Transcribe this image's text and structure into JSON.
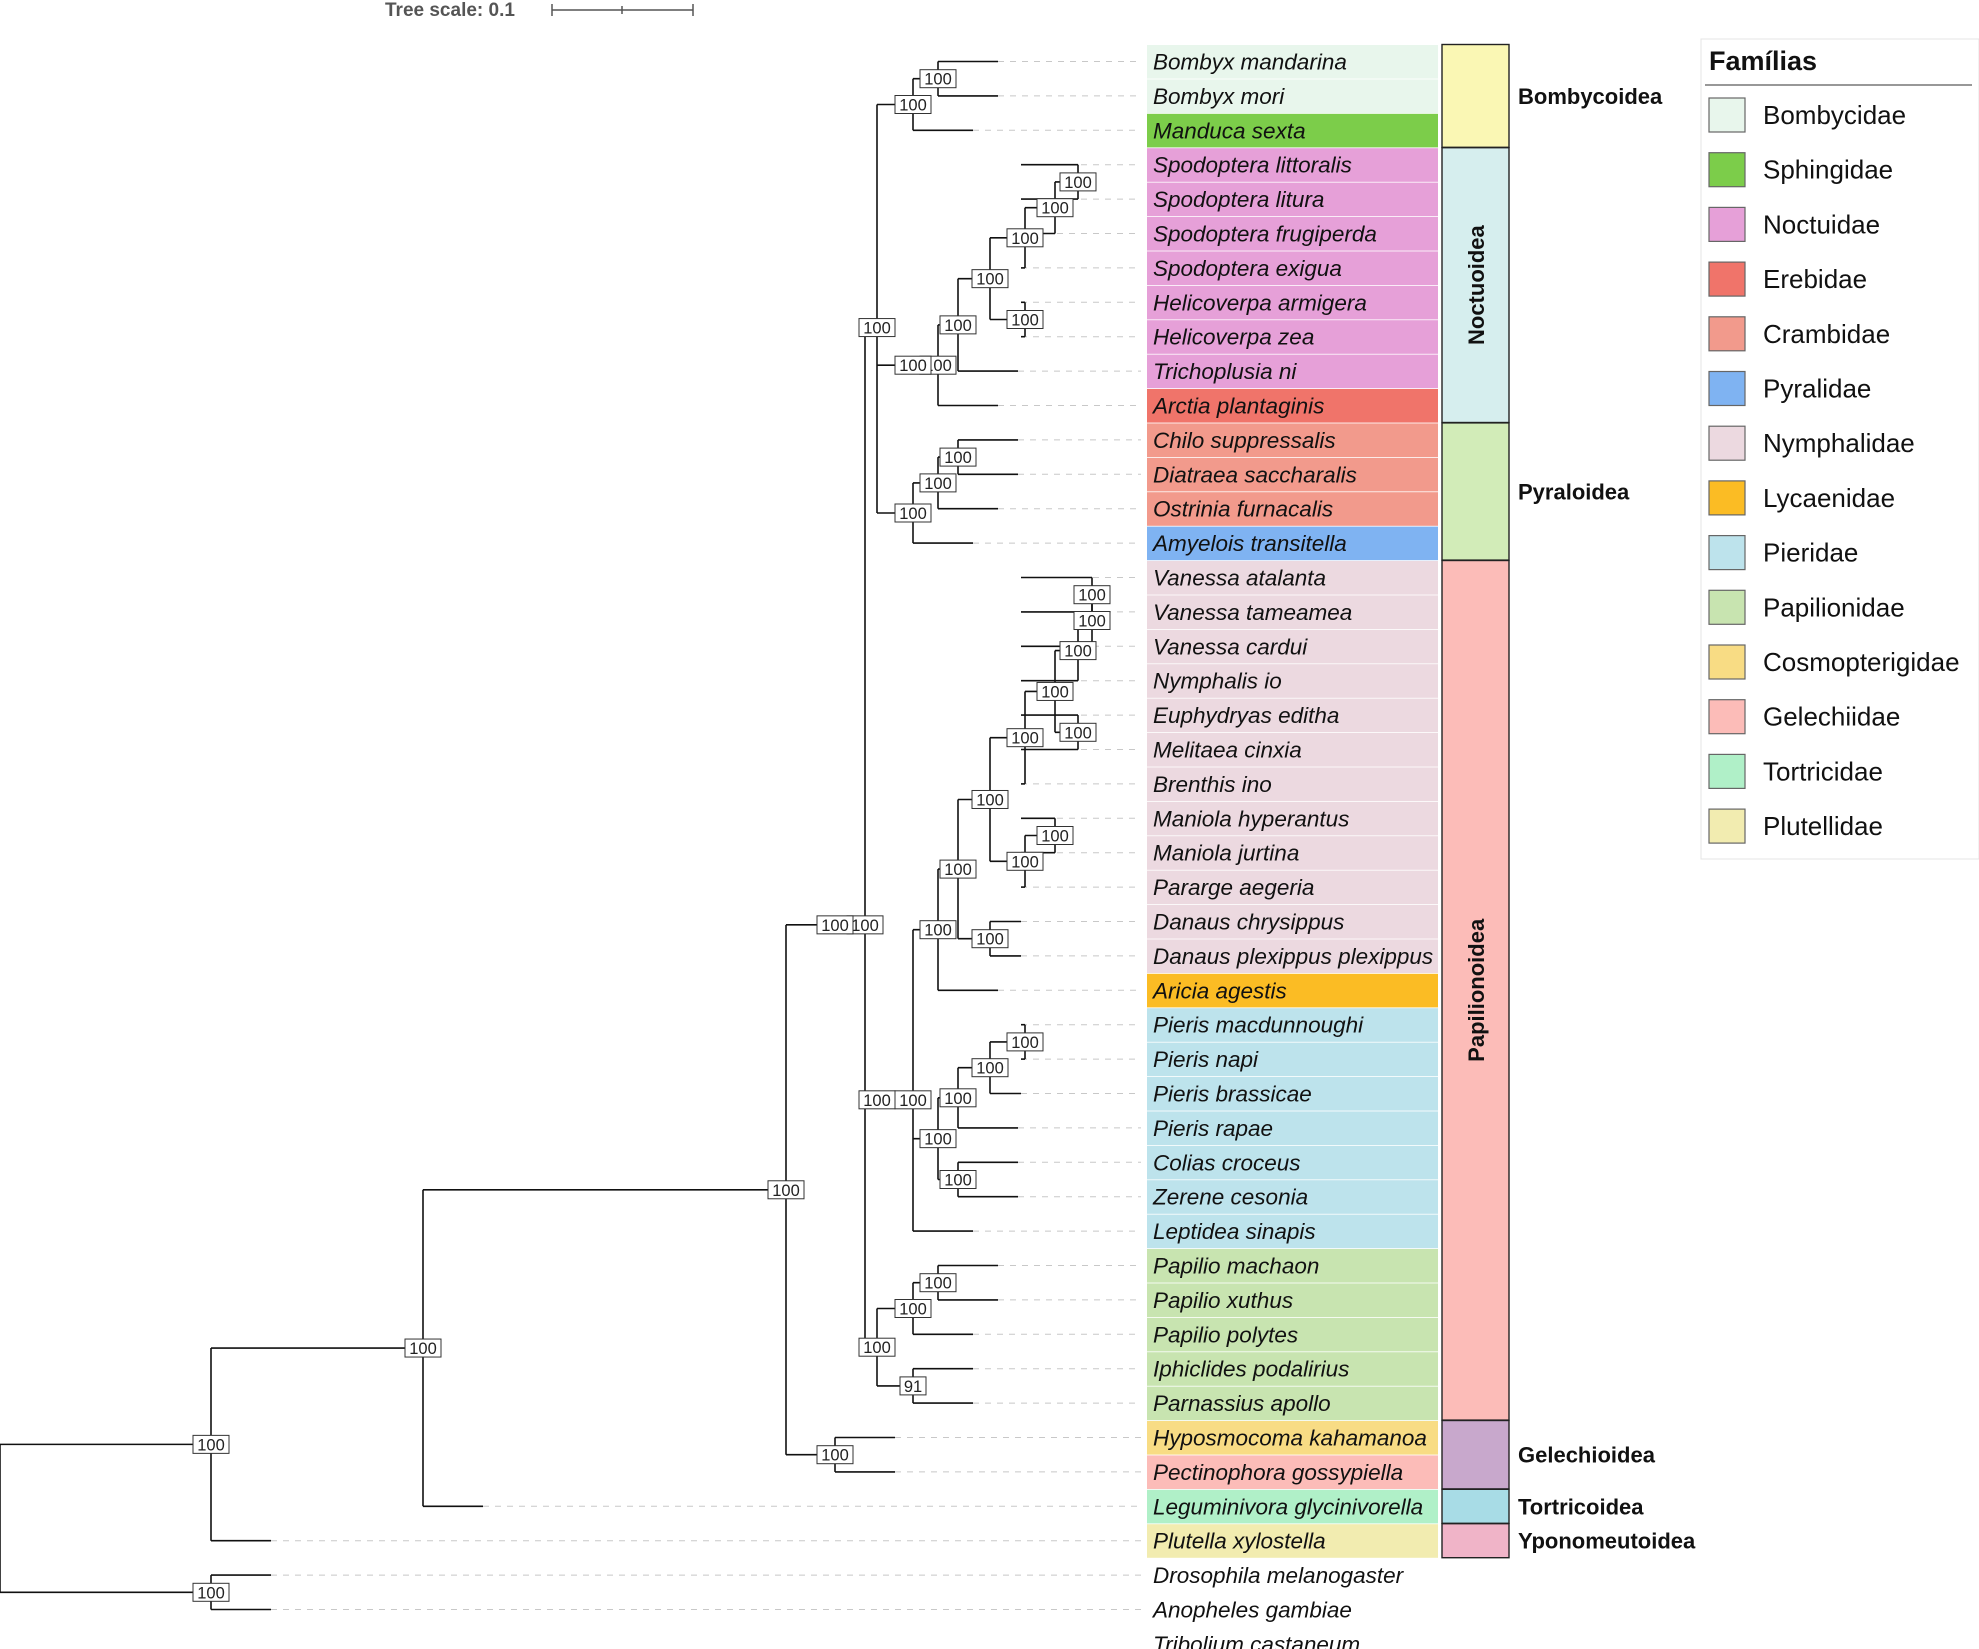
{
  "scale": {
    "label": "Tree scale: 0.1"
  },
  "taxa": [
    {
      "name": "Bombyx mandarina",
      "family": 0
    },
    {
      "name": "Bombyx mori",
      "family": 0
    },
    {
      "name": "Manduca sexta",
      "family": 1
    },
    {
      "name": "Spodoptera littoralis",
      "family": 2
    },
    {
      "name": "Spodoptera litura",
      "family": 2
    },
    {
      "name": "Spodoptera frugiperda",
      "family": 2
    },
    {
      "name": "Spodoptera exigua",
      "family": 2
    },
    {
      "name": "Helicoverpa armigera",
      "family": 2
    },
    {
      "name": "Helicoverpa zea",
      "family": 2
    },
    {
      "name": "Trichoplusia ni",
      "family": 2
    },
    {
      "name": "Arctia plantaginis",
      "family": 3
    },
    {
      "name": "Chilo suppressalis",
      "family": 4
    },
    {
      "name": "Diatraea saccharalis",
      "family": 4
    },
    {
      "name": "Ostrinia furnacalis",
      "family": 4
    },
    {
      "name": "Amyelois transitella",
      "family": 5
    },
    {
      "name": "Vanessa atalanta",
      "family": 6
    },
    {
      "name": "Vanessa tameamea",
      "family": 6
    },
    {
      "name": "Vanessa cardui",
      "family": 6
    },
    {
      "name": "Nymphalis io",
      "family": 6
    },
    {
      "name": "Euphydryas editha",
      "family": 6
    },
    {
      "name": "Melitaea cinxia",
      "family": 6
    },
    {
      "name": "Brenthis ino",
      "family": 6
    },
    {
      "name": "Maniola hyperantus",
      "family": 6
    },
    {
      "name": "Maniola jurtina",
      "family": 6
    },
    {
      "name": "Pararge aegeria",
      "family": 6
    },
    {
      "name": "Danaus chrysippus",
      "family": 6
    },
    {
      "name": "Danaus plexippus plexippus",
      "family": 6
    },
    {
      "name": "Aricia agestis",
      "family": 7
    },
    {
      "name": "Pieris macdunnoughi",
      "family": 8
    },
    {
      "name": "Pieris napi",
      "family": 8
    },
    {
      "name": "Pieris brassicae",
      "family": 8
    },
    {
      "name": "Pieris rapae",
      "family": 8
    },
    {
      "name": "Colias croceus",
      "family": 8
    },
    {
      "name": "Zerene cesonia",
      "family": 8
    },
    {
      "name": "Leptidea sinapis",
      "family": 8
    },
    {
      "name": "Papilio machaon",
      "family": 9
    },
    {
      "name": "Papilio xuthus",
      "family": 9
    },
    {
      "name": "Papilio polytes",
      "family": 9
    },
    {
      "name": "Iphiclides podalirius",
      "family": 9
    },
    {
      "name": "Parnassius apollo",
      "family": 9
    },
    {
      "name": "Hyposmocoma kahamanoa",
      "family": 10
    },
    {
      "name": "Pectinophora gossypiella",
      "family": 11
    },
    {
      "name": "Leguminivora glycinivorella",
      "family": 12
    },
    {
      "name": "Plutella xylostella",
      "family": 13
    },
    {
      "name": "Drosophila melanogaster",
      "family": null
    },
    {
      "name": "Anopheles gambiae",
      "family": null
    },
    {
      "name": "Tribolium castaneum",
      "family": null
    }
  ],
  "legend": {
    "title": "Famílias",
    "items": [
      {
        "label": "Bombycidae",
        "color": "#e8f6ec"
      },
      {
        "label": "Sphingidae",
        "color": "#7ccd4a"
      },
      {
        "label": "Noctuidae",
        "color": "#e6a0d8"
      },
      {
        "label": "Erebidae",
        "color": "#f0746a"
      },
      {
        "label": "Crambidae",
        "color": "#f29a8c"
      },
      {
        "label": "Pyralidae",
        "color": "#7fb3f2"
      },
      {
        "label": "Nymphalidae",
        "color": "#ecd9e0"
      },
      {
        "label": "Lycaenidae",
        "color": "#fbbc24"
      },
      {
        "label": "Pieridae",
        "color": "#bde3ec"
      },
      {
        "label": "Papilionidae",
        "color": "#c8e4b0"
      },
      {
        "label": "Cosmopterigidae",
        "color": "#f8dc84"
      },
      {
        "label": "Gelechiidae",
        "color": "#fcbcb8"
      },
      {
        "label": "Tortricidae",
        "color": "#b0f0c8"
      },
      {
        "label": "Plutellidae",
        "color": "#f2ecb0"
      }
    ]
  },
  "superfamilies": [
    {
      "label": "Bombycoidea",
      "color": "#faf7b4",
      "from_taxon": 0,
      "to_taxon": 2,
      "vertical": false
    },
    {
      "label": "Noctuoidea",
      "color": "#d6eeee",
      "from_taxon": 3,
      "to_taxon": 10,
      "vertical": true
    },
    {
      "label": "Pyraloidea",
      "color": "#d2ecb8",
      "from_taxon": 11,
      "to_taxon": 14,
      "vertical": false
    },
    {
      "label": "Papilionoidea",
      "color": "#fcbcb8",
      "from_taxon": 15,
      "to_taxon": 39,
      "vertical": true
    },
    {
      "label": "Gelechioidea",
      "color": "#c8a8cc",
      "from_taxon": 40,
      "to_taxon": 41,
      "vertical": false
    },
    {
      "label": "Tortricoidea",
      "color": "#a8dce6",
      "from_taxon": 42,
      "to_taxon": 42,
      "vertical": false
    },
    {
      "label": "Yponomeutoidea",
      "color": "#f0b4c8",
      "from_taxon": 43,
      "to_taxon": 43,
      "vertical": false
    }
  ],
  "tree": {
    "newick": "(((((((((Bombyx mandarina,Bombyx mori)100,Manduca sexta)100,(((((((Spodoptera littoralis,Spodoptera litura)100,Spodoptera frugiperda)100,Spodoptera exigua)100,(Helicoverpa armigera,Helicoverpa zea)100)100,Trichoplusia ni)100,Arctia plantaginis)100)100,(((Chilo suppressalis,Diatraea saccharalis)100,Ostrinia furnacalis)100,Amyelois transitella)100)100,((((((((((Vanessa atalanta,Vanessa tameamea)100,Vanessa cardui)100,Nymphalis io)100,(Euphydryas editha,Melitaea cinxia)100)100,Brenthis ino)100,((Maniola hyperantus,Maniola jurtina)100,Pararge aegeria)100)100,(Danaus chrysippus,Danaus plexippus plexippus)100)100,Aricia agestis)100,((((Pieris macdunnoughi,Pieris napi)100,Pieris brassicae)100,Pieris rapae)100,(Colias croceus,Zerene cesonia)100)100,Leptidea sinapis)100)100,(((Papilio machaon,Papilio xuthus)100,Papilio polytes)100,(Iphiclides podalirius,Parnassius apollo)91)100)100)100,(Hyposmocoma kahamanoa,Pectinophora gossypiella)100)100,Leguminivora glycinivorella)100,Plutella xylostella)100,(Drosophila melanogaster,Anopheles gambiae)100),Tribolium castaneum);"
  }
}
